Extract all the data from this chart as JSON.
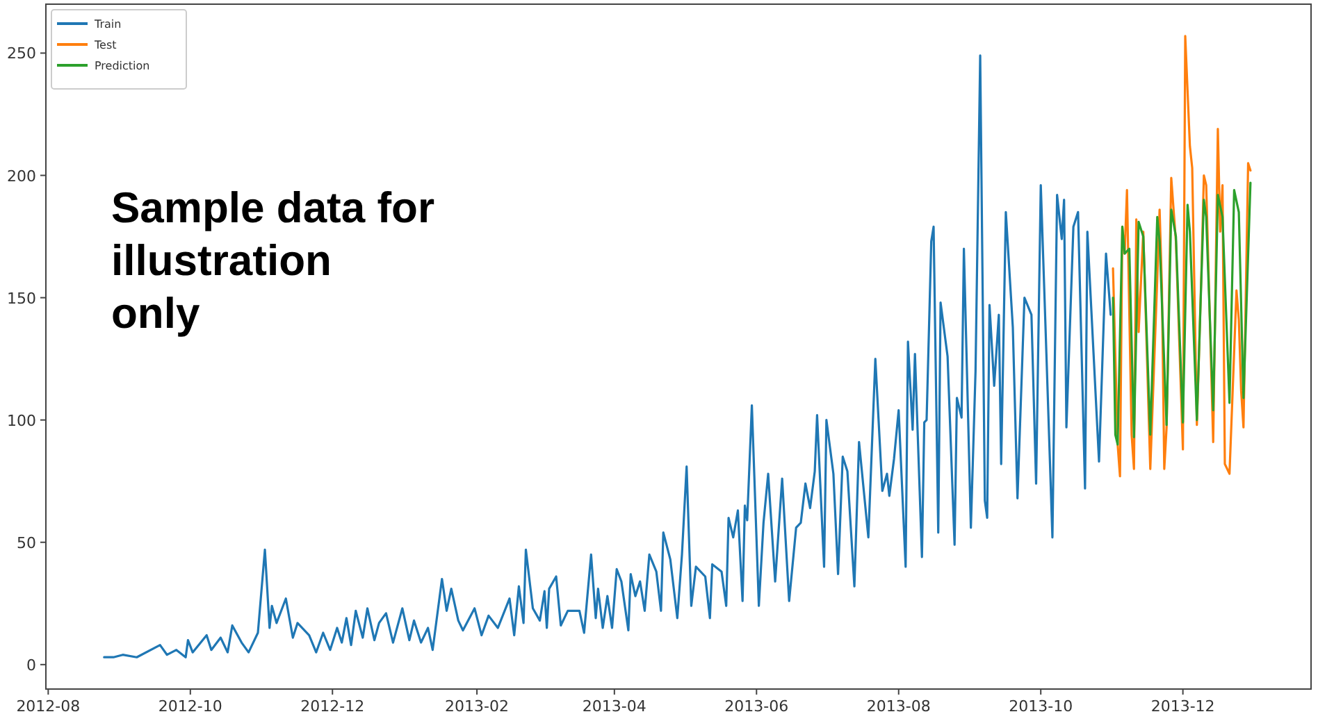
{
  "chart_data": {
    "type": "line",
    "legend": "top left",
    "grid": false,
    "line_style": "solid",
    "annotations": [
      "Sample data for illustration only"
    ],
    "xlim": [
      "2012-07-31",
      "2014-01-25"
    ],
    "ylim": [
      -10,
      270
    ],
    "xticks": [
      {
        "value": "2012-08-01",
        "label": "2012-08"
      },
      {
        "value": "2012-10-01",
        "label": "2012-10"
      },
      {
        "value": "2012-12-01",
        "label": "2012-12"
      },
      {
        "value": "2013-02-01",
        "label": "2013-02"
      },
      {
        "value": "2013-04-01",
        "label": "2013-04"
      },
      {
        "value": "2013-06-01",
        "label": "2013-06"
      },
      {
        "value": "2013-08-01",
        "label": "2013-08"
      },
      {
        "value": "2013-10-01",
        "label": "2013-10"
      },
      {
        "value": "2013-12-01",
        "label": "2013-12"
      }
    ],
    "yticks": [
      0,
      50,
      100,
      150,
      200,
      250
    ],
    "series": [
      {
        "name": "Train",
        "color": "#1f77b4",
        "x": [
          "2012-08-25",
          "2012-08-29",
          "2012-09-02",
          "2012-09-08",
          "2012-09-18",
          "2012-09-21",
          "2012-09-25",
          "2012-09-29",
          "2012-09-30",
          "2012-10-02",
          "2012-10-08",
          "2012-10-10",
          "2012-10-14",
          "2012-10-17",
          "2012-10-19",
          "2012-10-23",
          "2012-10-26",
          "2012-10-30",
          "2012-11-02",
          "2012-11-04",
          "2012-11-05",
          "2012-11-07",
          "2012-11-11",
          "2012-11-14",
          "2012-11-16",
          "2012-11-21",
          "2012-11-24",
          "2012-11-27",
          "2012-11-30",
          "2012-12-03",
          "2012-12-05",
          "2012-12-07",
          "2012-12-09",
          "2012-12-11",
          "2012-12-14",
          "2012-12-16",
          "2012-12-19",
          "2012-12-21",
          "2012-12-24",
          "2012-12-27",
          "2012-12-31",
          "2013-01-03",
          "2013-01-05",
          "2013-01-08",
          "2013-01-11",
          "2013-01-13",
          "2013-01-17",
          "2013-01-19",
          "2013-01-21",
          "2013-01-24",
          "2013-01-26",
          "2013-01-31",
          "2013-02-03",
          "2013-02-06",
          "2013-02-10",
          "2013-02-15",
          "2013-02-17",
          "2013-02-19",
          "2013-02-21",
          "2013-02-22",
          "2013-02-25",
          "2013-02-28",
          "2013-03-02",
          "2013-03-03",
          "2013-03-04",
          "2013-03-07",
          "2013-03-09",
          "2013-03-12",
          "2013-03-17",
          "2013-03-19",
          "2013-03-22",
          "2013-03-24",
          "2013-03-25",
          "2013-03-27",
          "2013-03-29",
          "2013-03-31",
          "2013-04-02",
          "2013-04-04",
          "2013-04-07",
          "2013-04-08",
          "2013-04-10",
          "2013-04-12",
          "2013-04-14",
          "2013-04-16",
          "2013-04-19",
          "2013-04-21",
          "2013-04-22",
          "2013-04-25",
          "2013-04-28",
          "2013-04-30",
          "2013-05-02",
          "2013-05-04",
          "2013-05-06",
          "2013-05-10",
          "2013-05-12",
          "2013-05-13",
          "2013-05-17",
          "2013-05-19",
          "2013-05-20",
          "2013-05-22",
          "2013-05-24",
          "2013-05-26",
          "2013-05-27",
          "2013-05-28",
          "2013-05-30",
          "2013-06-02",
          "2013-06-04",
          "2013-06-06",
          "2013-06-09",
          "2013-06-12",
          "2013-06-15",
          "2013-06-18",
          "2013-06-20",
          "2013-06-22",
          "2013-06-24",
          "2013-06-26",
          "2013-06-27",
          "2013-06-30",
          "2013-07-01",
          "2013-07-04",
          "2013-07-06",
          "2013-07-08",
          "2013-07-10",
          "2013-07-13",
          "2013-07-15",
          "2013-07-19",
          "2013-07-22",
          "2013-07-25",
          "2013-07-27",
          "2013-07-28",
          "2013-07-30",
          "2013-08-01",
          "2013-08-04",
          "2013-08-05",
          "2013-08-07",
          "2013-08-08",
          "2013-08-11",
          "2013-08-12",
          "2013-08-13",
          "2013-08-15",
          "2013-08-16",
          "2013-08-18",
          "2013-08-19",
          "2013-08-22",
          "2013-08-25",
          "2013-08-26",
          "2013-08-28",
          "2013-08-29",
          "2013-09-01",
          "2013-09-03",
          "2013-09-05",
          "2013-09-07",
          "2013-09-08",
          "2013-09-09",
          "2013-09-11",
          "2013-09-13",
          "2013-09-14",
          "2013-09-16",
          "2013-09-19",
          "2013-09-21",
          "2013-09-24",
          "2013-09-27",
          "2013-09-29",
          "2013-10-01",
          "2013-10-03",
          "2013-10-06",
          "2013-10-08",
          "2013-10-10",
          "2013-10-11",
          "2013-10-12",
          "2013-10-15",
          "2013-10-17",
          "2013-10-20",
          "2013-10-21",
          "2013-10-26",
          "2013-10-29",
          "2013-10-31"
        ],
        "values": [
          3,
          3,
          4,
          3,
          8,
          4,
          6,
          3,
          10,
          5,
          12,
          6,
          11,
          5,
          16,
          9,
          5,
          13,
          47,
          15,
          24,
          17,
          27,
          11,
          17,
          12,
          5,
          13,
          6,
          15,
          9,
          19,
          8,
          22,
          11,
          23,
          10,
          17,
          21,
          9,
          23,
          10,
          18,
          9,
          15,
          6,
          35,
          22,
          31,
          18,
          14,
          23,
          12,
          20,
          15,
          27,
          12,
          32,
          17,
          47,
          23,
          18,
          30,
          15,
          31,
          36,
          16,
          22,
          22,
          13,
          45,
          19,
          31,
          15,
          28,
          15,
          39,
          34,
          14,
          37,
          28,
          34,
          22,
          45,
          38,
          22,
          54,
          43,
          19,
          45,
          81,
          24,
          40,
          36,
          19,
          41,
          38,
          24,
          60,
          52,
          63,
          26,
          65,
          59,
          106,
          24,
          58,
          78,
          34,
          76,
          26,
          56,
          58,
          74,
          64,
          79,
          102,
          40,
          100,
          78,
          37,
          85,
          79,
          32,
          91,
          52,
          125,
          71,
          78,
          69,
          84,
          104,
          40,
          132,
          96,
          127,
          44,
          99,
          100,
          173,
          179,
          54,
          148,
          126,
          49,
          109,
          101,
          170,
          56,
          120,
          249,
          67,
          60,
          147,
          114,
          143,
          82,
          185,
          138,
          68,
          150,
          143,
          74,
          196,
          139,
          52,
          192,
          174,
          190,
          97,
          179,
          185,
          72,
          177,
          83,
          168,
          143
        ]
      },
      {
        "name": "Test",
        "color": "#ff7f0e",
        "x": [
          "2013-11-01",
          "2013-11-03",
          "2013-11-04",
          "2013-11-05",
          "2013-11-06",
          "2013-11-07",
          "2013-11-09",
          "2013-11-10",
          "2013-11-11",
          "2013-11-12",
          "2013-11-14",
          "2013-11-17",
          "2013-11-20",
          "2013-11-21",
          "2013-11-22",
          "2013-11-23",
          "2013-11-24",
          "2013-11-26",
          "2013-11-28",
          "2013-12-01",
          "2013-12-02",
          "2013-12-04",
          "2013-12-05",
          "2013-12-07",
          "2013-12-09",
          "2013-12-10",
          "2013-12-11",
          "2013-12-14",
          "2013-12-16",
          "2013-12-17",
          "2013-12-18",
          "2013-12-19",
          "2013-12-21",
          "2013-12-24",
          "2013-12-25",
          "2013-12-26",
          "2013-12-27",
          "2013-12-29",
          "2013-12-30"
        ],
        "values": [
          162,
          90,
          77,
          179,
          168,
          194,
          94,
          80,
          182,
          136,
          177,
          80,
          158,
          186,
          154,
          80,
          97,
          199,
          173,
          88,
          257,
          212,
          203,
          98,
          162,
          200,
          196,
          91,
          219,
          177,
          196,
          82,
          78,
          153,
          141,
          112,
          97,
          205,
          202
        ]
      },
      {
        "name": "Prediction",
        "color": "#2ca02c",
        "x": [
          "2013-11-01",
          "2013-11-02",
          "2013-11-03",
          "2013-11-05",
          "2013-11-06",
          "2013-11-08",
          "2013-11-10",
          "2013-11-12",
          "2013-11-14",
          "2013-11-17",
          "2013-11-20",
          "2013-11-21",
          "2013-11-24",
          "2013-11-26",
          "2013-11-28",
          "2013-12-01",
          "2013-12-03",
          "2013-12-04",
          "2013-12-07",
          "2013-12-10",
          "2013-12-11",
          "2013-12-14",
          "2013-12-16",
          "2013-12-18",
          "2013-12-21",
          "2013-12-23",
          "2013-12-25",
          "2013-12-27",
          "2013-12-30"
        ],
        "values": [
          150,
          94,
          90,
          179,
          168,
          170,
          93,
          181,
          175,
          94,
          183,
          173,
          98,
          186,
          175,
          99,
          188,
          177,
          100,
          190,
          183,
          104,
          192,
          183,
          107,
          194,
          185,
          109,
          197
        ]
      }
    ]
  }
}
